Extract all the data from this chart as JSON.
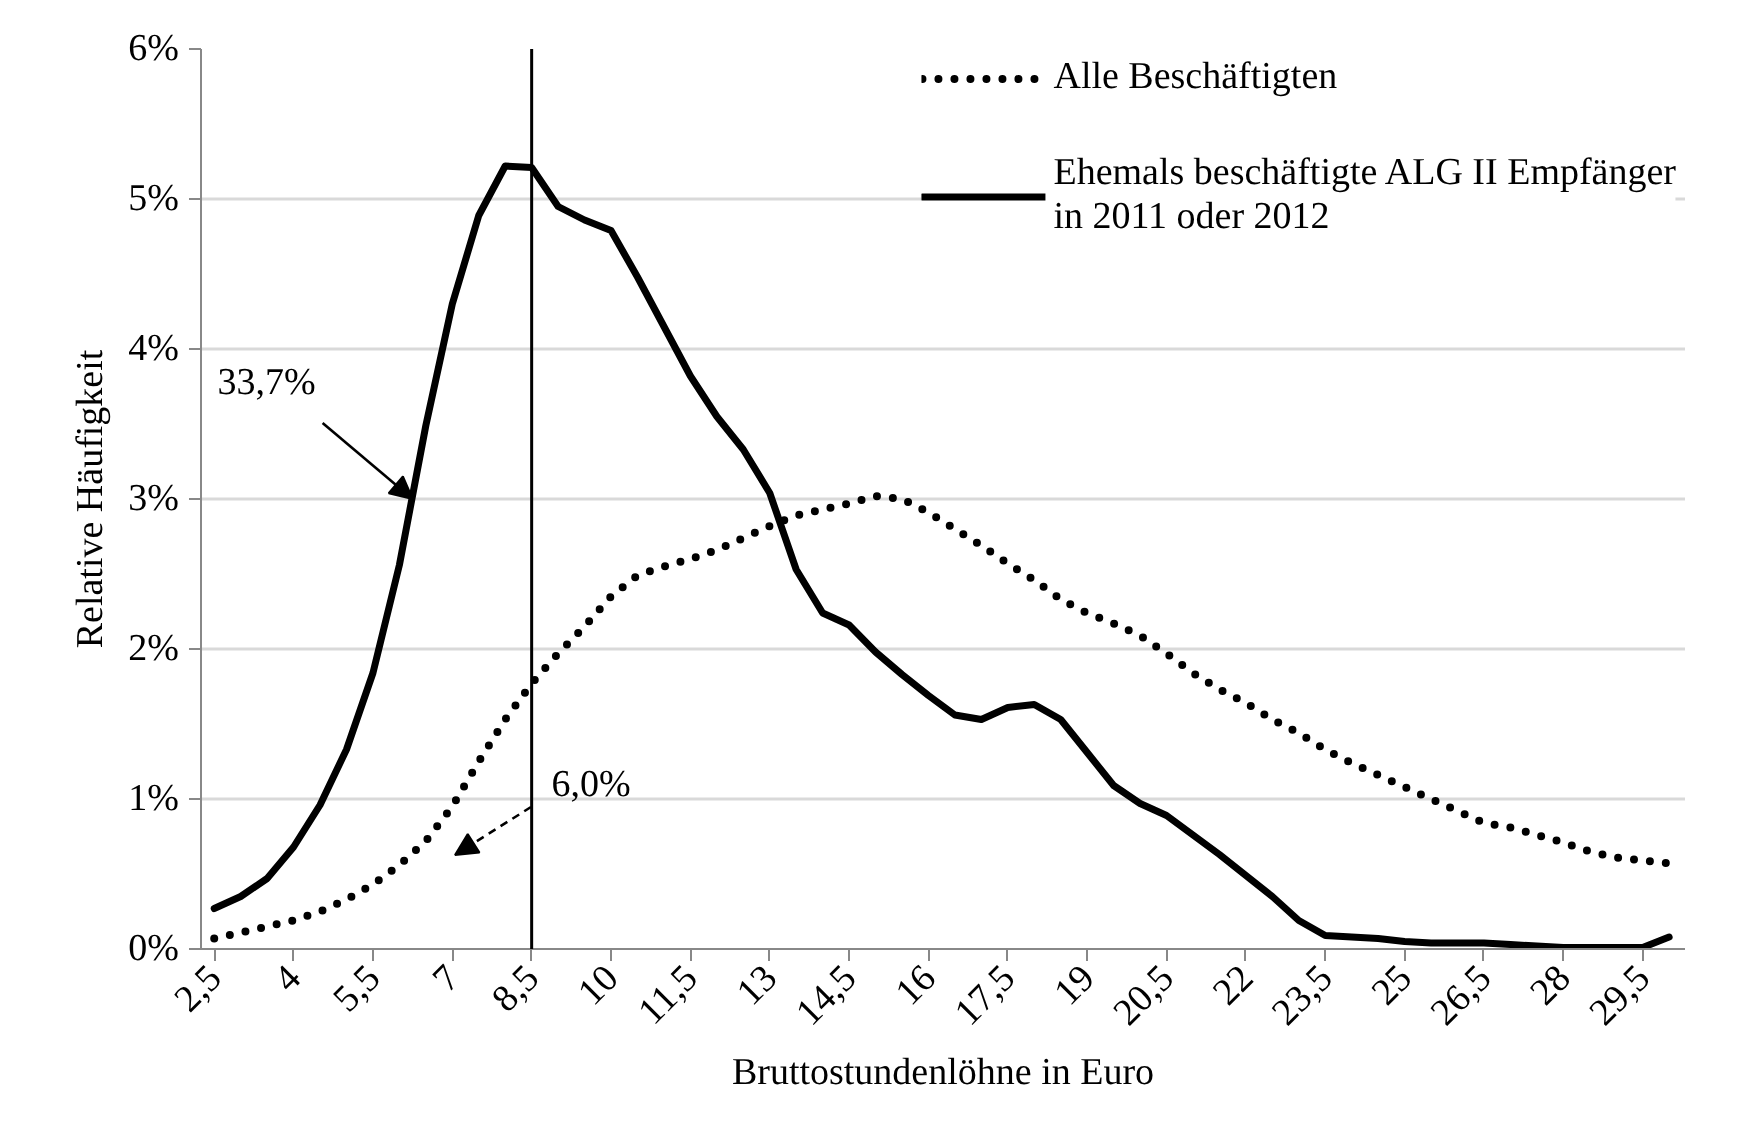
{
  "chart_data": {
    "type": "line",
    "xlabel": "Bruttostundenlöhne in Euro",
    "ylabel": "Relative Häufigkeit",
    "x": [
      2.5,
      3,
      3.5,
      4,
      4.5,
      5,
      5.5,
      6,
      6.5,
      7,
      7.5,
      8,
      8.5,
      9,
      9.5,
      10,
      10.5,
      11,
      11.5,
      12,
      12.5,
      13,
      13.5,
      14,
      14.5,
      15,
      15.5,
      16,
      16.5,
      17,
      17.5,
      18,
      18.5,
      19,
      19.5,
      20,
      20.5,
      21,
      21.5,
      22,
      22.5,
      23,
      23.5,
      24,
      24.5,
      25,
      25.5,
      26,
      26.5,
      27,
      27.5,
      28,
      28.5,
      29,
      29.5,
      30
    ],
    "series": [
      {
        "name": "Alle Beschäftigten",
        "color": "#000000",
        "line_style": "dotted",
        "values": [
          0.07,
          0.11,
          0.15,
          0.19,
          0.25,
          0.33,
          0.43,
          0.56,
          0.72,
          0.95,
          1.25,
          1.53,
          1.77,
          1.97,
          2.15,
          2.35,
          2.49,
          2.55,
          2.6,
          2.66,
          2.74,
          2.82,
          2.89,
          2.93,
          2.97,
          3.02,
          3.0,
          2.91,
          2.8,
          2.69,
          2.57,
          2.46,
          2.33,
          2.24,
          2.17,
          2.09,
          1.97,
          1.84,
          1.73,
          1.64,
          1.53,
          1.44,
          1.33,
          1.24,
          1.16,
          1.08,
          1.0,
          0.92,
          0.84,
          0.81,
          0.76,
          0.71,
          0.65,
          0.61,
          0.59,
          0.57
        ]
      },
      {
        "name": "Ehemals beschäftigte ALG II Empfänger in 2011 oder 2012",
        "color": "#000000",
        "line_style": "solid",
        "values": [
          0.27,
          0.35,
          0.47,
          0.68,
          0.96,
          1.33,
          1.84,
          2.56,
          3.49,
          4.3,
          4.89,
          5.22,
          5.21,
          4.95,
          4.86,
          4.79,
          4.48,
          4.15,
          3.82,
          3.55,
          3.33,
          3.04,
          2.53,
          2.24,
          2.16,
          1.98,
          1.83,
          1.69,
          1.56,
          1.53,
          1.61,
          1.63,
          1.53,
          1.31,
          1.09,
          0.97,
          0.89,
          0.76,
          0.63,
          0.49,
          0.35,
          0.19,
          0.09,
          0.08,
          0.07,
          0.05,
          0.04,
          0.04,
          0.04,
          0.03,
          0.02,
          0.01,
          0.01,
          0.01,
          0.01,
          0.08
        ]
      }
    ],
    "xlim": [
      2.25,
      30.3
    ],
    "xticks": [
      {
        "value": 2.5,
        "label": "2,5"
      },
      4,
      {
        "value": 5.5,
        "label": "5,5"
      },
      7,
      {
        "value": 8.5,
        "label": "8,5"
      },
      10,
      {
        "value": 11.5,
        "label": "11,5"
      },
      13,
      {
        "value": 14.5,
        "label": "14,5"
      },
      16,
      {
        "value": 17.5,
        "label": "17,5"
      },
      19,
      {
        "value": 20.5,
        "label": "20,5"
      },
      22,
      {
        "value": 23.5,
        "label": "23,5"
      },
      25,
      {
        "value": 26.5,
        "label": "26,5"
      },
      28,
      {
        "value": 29.5,
        "label": "29,5"
      }
    ],
    "ylim": [
      0,
      6
    ],
    "yticks": [
      {
        "value": 0,
        "label": "0%"
      },
      {
        "value": 1,
        "label": "1%"
      },
      {
        "value": 2,
        "label": "2%"
      },
      {
        "value": 3,
        "label": "3%"
      },
      {
        "value": 4,
        "label": "4%"
      },
      {
        "value": 5,
        "label": "5%"
      },
      {
        "value": 6,
        "label": "6%"
      }
    ],
    "grid": "y",
    "legend": "top right",
    "marker": "none",
    "ref_lines": [
      {
        "axis": "x",
        "value": 8.5,
        "color": "#000000"
      }
    ],
    "annotations": [
      {
        "text": "33,7%",
        "x": 6.25,
        "y": 3.0
      },
      "6,0%"
    ]
  }
}
